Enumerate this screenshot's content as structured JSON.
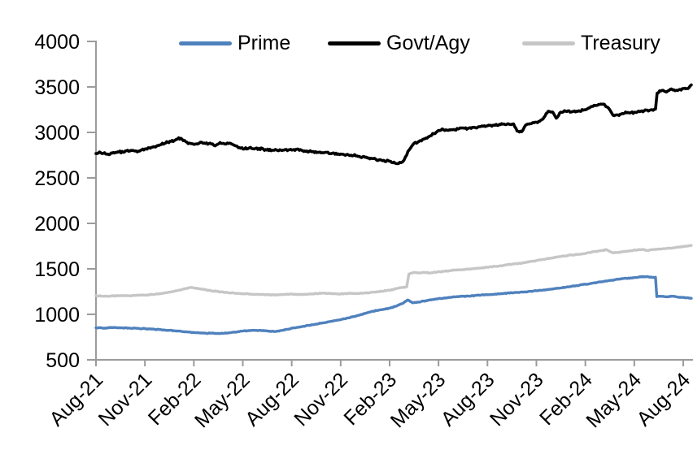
{
  "chart_data": {
    "type": "line",
    "title": "",
    "xlabel": "",
    "ylabel": "",
    "grid": false,
    "legend_position": "top",
    "background": "#ffffff",
    "axis_color": "#9b9b9b",
    "text_color": "#000000",
    "ylim": [
      500,
      4000
    ],
    "y_ticks": [
      500,
      1000,
      1500,
      2000,
      2500,
      3000,
      3500,
      4000
    ],
    "x_tick_labels": [
      "Aug-21",
      "Nov-21",
      "Feb-22",
      "May-22",
      "Aug-22",
      "Nov-22",
      "Feb-23",
      "May-23",
      "Aug-23",
      "Nov-23",
      "Feb-24",
      "May-24",
      "Aug-24"
    ],
    "x_tick_months": [
      0,
      3,
      6,
      9,
      12,
      15,
      18,
      21,
      24,
      27,
      30,
      33,
      36
    ],
    "x_range_months": [
      0,
      36.5
    ],
    "series": [
      {
        "name": "Prime",
        "color": "#4f81bd",
        "width": 3.4,
        "wiggle": 5,
        "points": [
          [
            0,
            853
          ],
          [
            0.5,
            848
          ],
          [
            1,
            855
          ],
          [
            1.5,
            852
          ],
          [
            2,
            850
          ],
          [
            2.5,
            846
          ],
          [
            3,
            842
          ],
          [
            3.5,
            838
          ],
          [
            4,
            830
          ],
          [
            4.5,
            824
          ],
          [
            5,
            816
          ],
          [
            5.5,
            808
          ],
          [
            6,
            800
          ],
          [
            6.5,
            795
          ],
          [
            7,
            793
          ],
          [
            7.5,
            791
          ],
          [
            8,
            793
          ],
          [
            8.5,
            805
          ],
          [
            9,
            817
          ],
          [
            9.5,
            822
          ],
          [
            10,
            824
          ],
          [
            10.5,
            818
          ],
          [
            11,
            812
          ],
          [
            11.5,
            825
          ],
          [
            12,
            848
          ],
          [
            12.5,
            862
          ],
          [
            13,
            878
          ],
          [
            13.5,
            892
          ],
          [
            14,
            908
          ],
          [
            14.5,
            925
          ],
          [
            15,
            942
          ],
          [
            15.5,
            962
          ],
          [
            16,
            985
          ],
          [
            16.5,
            1010
          ],
          [
            17,
            1035
          ],
          [
            17.5,
            1052
          ],
          [
            18,
            1068
          ],
          [
            18.4,
            1090
          ],
          [
            18.8,
            1120
          ],
          [
            19.1,
            1158
          ],
          [
            19.4,
            1128
          ],
          [
            19.8,
            1135
          ],
          [
            20.2,
            1150
          ],
          [
            20.6,
            1162
          ],
          [
            21,
            1172
          ],
          [
            21.5,
            1182
          ],
          [
            22,
            1192
          ],
          [
            22.5,
            1198
          ],
          [
            23,
            1203
          ],
          [
            23.5,
            1210
          ],
          [
            24,
            1216
          ],
          [
            24.5,
            1222
          ],
          [
            25,
            1230
          ],
          [
            25.5,
            1237
          ],
          [
            26,
            1244
          ],
          [
            26.5,
            1251
          ],
          [
            27,
            1259
          ],
          [
            27.5,
            1268
          ],
          [
            28,
            1279
          ],
          [
            28.5,
            1290
          ],
          [
            29,
            1302
          ],
          [
            29.5,
            1316
          ],
          [
            30,
            1331
          ],
          [
            30.5,
            1345
          ],
          [
            31,
            1358
          ],
          [
            31.5,
            1372
          ],
          [
            32,
            1386
          ],
          [
            32.5,
            1396
          ],
          [
            33,
            1404
          ],
          [
            33.4,
            1412
          ],
          [
            33.8,
            1415
          ],
          [
            34.1,
            1405
          ],
          [
            34.3,
            1408
          ],
          [
            34.38,
            1195
          ],
          [
            34.7,
            1198
          ],
          [
            35,
            1193
          ],
          [
            35.4,
            1199
          ],
          [
            35.8,
            1188
          ],
          [
            36.2,
            1183
          ],
          [
            36.5,
            1176
          ]
        ]
      },
      {
        "name": "Govt/Agy",
        "color": "#000000",
        "width": 3.6,
        "wiggle": 13,
        "points": [
          [
            0,
            2768
          ],
          [
            0.3,
            2776
          ],
          [
            0.6,
            2762
          ],
          [
            1,
            2772
          ],
          [
            1.4,
            2784
          ],
          [
            1.8,
            2796
          ],
          [
            2.2,
            2802
          ],
          [
            2.6,
            2794
          ],
          [
            3,
            2818
          ],
          [
            3.4,
            2836
          ],
          [
            3.8,
            2856
          ],
          [
            4.2,
            2878
          ],
          [
            4.6,
            2902
          ],
          [
            5,
            2928
          ],
          [
            5.2,
            2936
          ],
          [
            5.5,
            2898
          ],
          [
            5.8,
            2878
          ],
          [
            6.1,
            2872
          ],
          [
            6.4,
            2892
          ],
          [
            6.7,
            2878
          ],
          [
            7,
            2882
          ],
          [
            7.3,
            2852
          ],
          [
            7.6,
            2888
          ],
          [
            7.9,
            2872
          ],
          [
            8.2,
            2882
          ],
          [
            8.5,
            2856
          ],
          [
            8.8,
            2832
          ],
          [
            9.1,
            2818
          ],
          [
            9.4,
            2830
          ],
          [
            9.7,
            2818
          ],
          [
            10,
            2824
          ],
          [
            10.4,
            2812
          ],
          [
            10.8,
            2804
          ],
          [
            11.2,
            2798
          ],
          [
            11.6,
            2812
          ],
          [
            12,
            2806
          ],
          [
            12.4,
            2816
          ],
          [
            12.8,
            2796
          ],
          [
            13.2,
            2788
          ],
          [
            13.6,
            2782
          ],
          [
            14,
            2778
          ],
          [
            14.5,
            2772
          ],
          [
            15,
            2762
          ],
          [
            15.5,
            2750
          ],
          [
            16,
            2742
          ],
          [
            16.5,
            2726
          ],
          [
            17,
            2712
          ],
          [
            17.5,
            2694
          ],
          [
            18,
            2682
          ],
          [
            18.4,
            2658
          ],
          [
            18.7,
            2668
          ],
          [
            18.9,
            2700
          ],
          [
            19.2,
            2808
          ],
          [
            19.5,
            2880
          ],
          [
            19.8,
            2902
          ],
          [
            20.1,
            2928
          ],
          [
            20.5,
            2962
          ],
          [
            21,
            3022
          ],
          [
            21.3,
            3030
          ],
          [
            21.6,
            3022
          ],
          [
            22,
            3028
          ],
          [
            22.4,
            3048
          ],
          [
            22.8,
            3044
          ],
          [
            23.2,
            3056
          ],
          [
            23.6,
            3066
          ],
          [
            24,
            3072
          ],
          [
            24.4,
            3080
          ],
          [
            24.8,
            3086
          ],
          [
            25.2,
            3090
          ],
          [
            25.6,
            3094
          ],
          [
            25.82,
            3014
          ],
          [
            26.1,
            3008
          ],
          [
            26.32,
            3076
          ],
          [
            26.7,
            3096
          ],
          [
            27,
            3112
          ],
          [
            27.4,
            3146
          ],
          [
            27.72,
            3232
          ],
          [
            28,
            3224
          ],
          [
            28.22,
            3156
          ],
          [
            28.5,
            3222
          ],
          [
            28.8,
            3232
          ],
          [
            29.2,
            3228
          ],
          [
            29.6,
            3238
          ],
          [
            30,
            3248
          ],
          [
            30.4,
            3286
          ],
          [
            30.8,
            3306
          ],
          [
            31.1,
            3312
          ],
          [
            31.4,
            3272
          ],
          [
            31.7,
            3188
          ],
          [
            32,
            3192
          ],
          [
            32.4,
            3212
          ],
          [
            32.8,
            3218
          ],
          [
            33.2,
            3226
          ],
          [
            33.6,
            3236
          ],
          [
            34,
            3246
          ],
          [
            34.3,
            3256
          ],
          [
            34.4,
            3432
          ],
          [
            34.7,
            3462
          ],
          [
            34.9,
            3448
          ],
          [
            35.2,
            3472
          ],
          [
            35.5,
            3458
          ],
          [
            35.8,
            3472
          ],
          [
            36.1,
            3486
          ],
          [
            36.3,
            3482
          ],
          [
            36.5,
            3522
          ]
        ]
      },
      {
        "name": "Treasury",
        "color": "#c6c6c6",
        "width": 3.4,
        "wiggle": 5,
        "points": [
          [
            0,
            1205
          ],
          [
            0.5,
            1198
          ],
          [
            1,
            1202
          ],
          [
            1.5,
            1206
          ],
          [
            2,
            1204
          ],
          [
            2.5,
            1210
          ],
          [
            3,
            1212
          ],
          [
            3.5,
            1218
          ],
          [
            4,
            1228
          ],
          [
            4.5,
            1244
          ],
          [
            5,
            1262
          ],
          [
            5.4,
            1280
          ],
          [
            5.8,
            1296
          ],
          [
            6.1,
            1288
          ],
          [
            6.5,
            1276
          ],
          [
            7,
            1262
          ],
          [
            7.5,
            1250
          ],
          [
            8,
            1240
          ],
          [
            8.5,
            1232
          ],
          [
            9,
            1226
          ],
          [
            9.5,
            1222
          ],
          [
            10,
            1220
          ],
          [
            10.5,
            1216
          ],
          [
            11,
            1214
          ],
          [
            11.5,
            1218
          ],
          [
            12,
            1224
          ],
          [
            12.5,
            1218
          ],
          [
            13,
            1222
          ],
          [
            13.5,
            1228
          ],
          [
            14,
            1232
          ],
          [
            14.5,
            1228
          ],
          [
            15,
            1224
          ],
          [
            15.5,
            1232
          ],
          [
            16,
            1228
          ],
          [
            16.5,
            1236
          ],
          [
            17,
            1244
          ],
          [
            17.5,
            1254
          ],
          [
            18,
            1264
          ],
          [
            18.4,
            1282
          ],
          [
            18.8,
            1296
          ],
          [
            19.05,
            1302
          ],
          [
            19.18,
            1442
          ],
          [
            19.5,
            1462
          ],
          [
            19.8,
            1455
          ],
          [
            20.1,
            1462
          ],
          [
            20.5,
            1455
          ],
          [
            20.9,
            1464
          ],
          [
            21.3,
            1472
          ],
          [
            21.7,
            1480
          ],
          [
            22.1,
            1488
          ],
          [
            22.5,
            1492
          ],
          [
            23,
            1500
          ],
          [
            23.5,
            1508
          ],
          [
            24,
            1518
          ],
          [
            24.5,
            1528
          ],
          [
            25,
            1538
          ],
          [
            25.5,
            1550
          ],
          [
            26,
            1562
          ],
          [
            26.5,
            1576
          ],
          [
            27,
            1592
          ],
          [
            27.5,
            1606
          ],
          [
            28,
            1622
          ],
          [
            28.5,
            1636
          ],
          [
            29,
            1650
          ],
          [
            29.5,
            1658
          ],
          [
            30,
            1668
          ],
          [
            30.5,
            1688
          ],
          [
            31,
            1702
          ],
          [
            31.3,
            1710
          ],
          [
            31.7,
            1676
          ],
          [
            32,
            1680
          ],
          [
            32.4,
            1692
          ],
          [
            32.8,
            1700
          ],
          [
            33.2,
            1708
          ],
          [
            33.5,
            1714
          ],
          [
            33.8,
            1702
          ],
          [
            34.1,
            1712
          ],
          [
            34.5,
            1718
          ],
          [
            35,
            1726
          ],
          [
            35.5,
            1734
          ],
          [
            36,
            1744
          ],
          [
            36.5,
            1758
          ]
        ]
      }
    ]
  }
}
